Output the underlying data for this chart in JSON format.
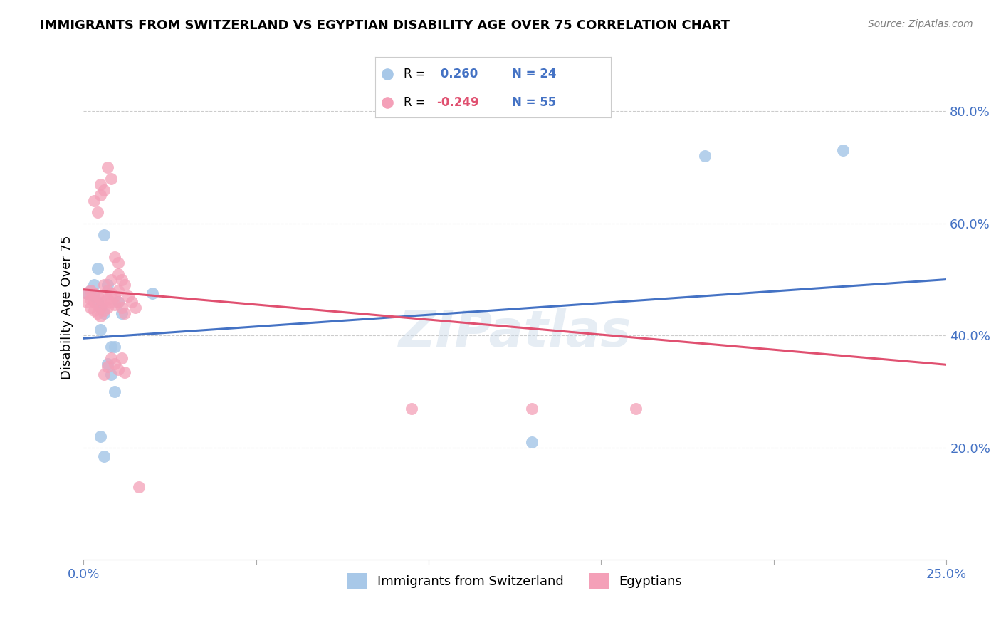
{
  "title": "IMMIGRANTS FROM SWITZERLAND VS EGYPTIAN DISABILITY AGE OVER 75 CORRELATION CHART",
  "source": "Source: ZipAtlas.com",
  "ylabel": "Disability Age Over 75",
  "x_min": 0.0,
  "x_max": 0.25,
  "y_min": 0.0,
  "y_max": 0.9,
  "x_ticks": [
    0.0,
    0.05,
    0.1,
    0.15,
    0.2,
    0.25
  ],
  "y_ticks": [
    0.2,
    0.4,
    0.6,
    0.8
  ],
  "swiss_R": 0.26,
  "swiss_N": 24,
  "egypt_R": -0.249,
  "egypt_N": 55,
  "swiss_color": "#a8c8e8",
  "egypt_color": "#f4a0b8",
  "swiss_line_color": "#4472c4",
  "egypt_line_color": "#e05070",
  "legend_label_swiss": "Immigrants from Switzerland",
  "legend_label_egypt": "Egyptians",
  "watermark": "ZIPatlas",
  "swiss_points": [
    [
      0.001,
      0.475
    ],
    [
      0.002,
      0.48
    ],
    [
      0.003,
      0.47
    ],
    [
      0.003,
      0.49
    ],
    [
      0.004,
      0.46
    ],
    [
      0.004,
      0.52
    ],
    [
      0.005,
      0.45
    ],
    [
      0.005,
      0.41
    ],
    [
      0.006,
      0.44
    ],
    [
      0.006,
      0.58
    ],
    [
      0.007,
      0.49
    ],
    [
      0.007,
      0.35
    ],
    [
      0.008,
      0.33
    ],
    [
      0.008,
      0.38
    ],
    [
      0.009,
      0.38
    ],
    [
      0.01,
      0.46
    ],
    [
      0.011,
      0.44
    ],
    [
      0.005,
      0.22
    ],
    [
      0.006,
      0.185
    ],
    [
      0.009,
      0.3
    ],
    [
      0.02,
      0.475
    ],
    [
      0.13,
      0.21
    ],
    [
      0.18,
      0.72
    ],
    [
      0.22,
      0.73
    ]
  ],
  "egypt_points": [
    [
      0.001,
      0.475
    ],
    [
      0.001,
      0.46
    ],
    [
      0.002,
      0.48
    ],
    [
      0.002,
      0.465
    ],
    [
      0.002,
      0.45
    ],
    [
      0.003,
      0.475
    ],
    [
      0.003,
      0.46
    ],
    [
      0.003,
      0.445
    ],
    [
      0.004,
      0.47
    ],
    [
      0.004,
      0.455
    ],
    [
      0.004,
      0.44
    ],
    [
      0.005,
      0.465
    ],
    [
      0.005,
      0.45
    ],
    [
      0.005,
      0.435
    ],
    [
      0.006,
      0.46
    ],
    [
      0.006,
      0.445
    ],
    [
      0.006,
      0.49
    ],
    [
      0.007,
      0.48
    ],
    [
      0.007,
      0.465
    ],
    [
      0.007,
      0.45
    ],
    [
      0.008,
      0.475
    ],
    [
      0.008,
      0.46
    ],
    [
      0.008,
      0.5
    ],
    [
      0.009,
      0.455
    ],
    [
      0.009,
      0.47
    ],
    [
      0.01,
      0.48
    ],
    [
      0.01,
      0.46
    ],
    [
      0.011,
      0.45
    ],
    [
      0.012,
      0.44
    ],
    [
      0.013,
      0.47
    ],
    [
      0.014,
      0.46
    ],
    [
      0.015,
      0.45
    ],
    [
      0.003,
      0.64
    ],
    [
      0.004,
      0.62
    ],
    [
      0.005,
      0.65
    ],
    [
      0.005,
      0.67
    ],
    [
      0.006,
      0.66
    ],
    [
      0.007,
      0.7
    ],
    [
      0.008,
      0.68
    ],
    [
      0.009,
      0.54
    ],
    [
      0.01,
      0.53
    ],
    [
      0.01,
      0.51
    ],
    [
      0.011,
      0.5
    ],
    [
      0.012,
      0.49
    ],
    [
      0.006,
      0.33
    ],
    [
      0.007,
      0.345
    ],
    [
      0.008,
      0.36
    ],
    [
      0.009,
      0.35
    ],
    [
      0.01,
      0.34
    ],
    [
      0.011,
      0.36
    ],
    [
      0.012,
      0.335
    ],
    [
      0.016,
      0.13
    ],
    [
      0.095,
      0.27
    ],
    [
      0.16,
      0.27
    ],
    [
      0.13,
      0.27
    ]
  ],
  "swiss_line": [
    0.0,
    0.25,
    0.395,
    0.5
  ],
  "egypt_line": [
    0.0,
    0.25,
    0.482,
    0.348
  ]
}
